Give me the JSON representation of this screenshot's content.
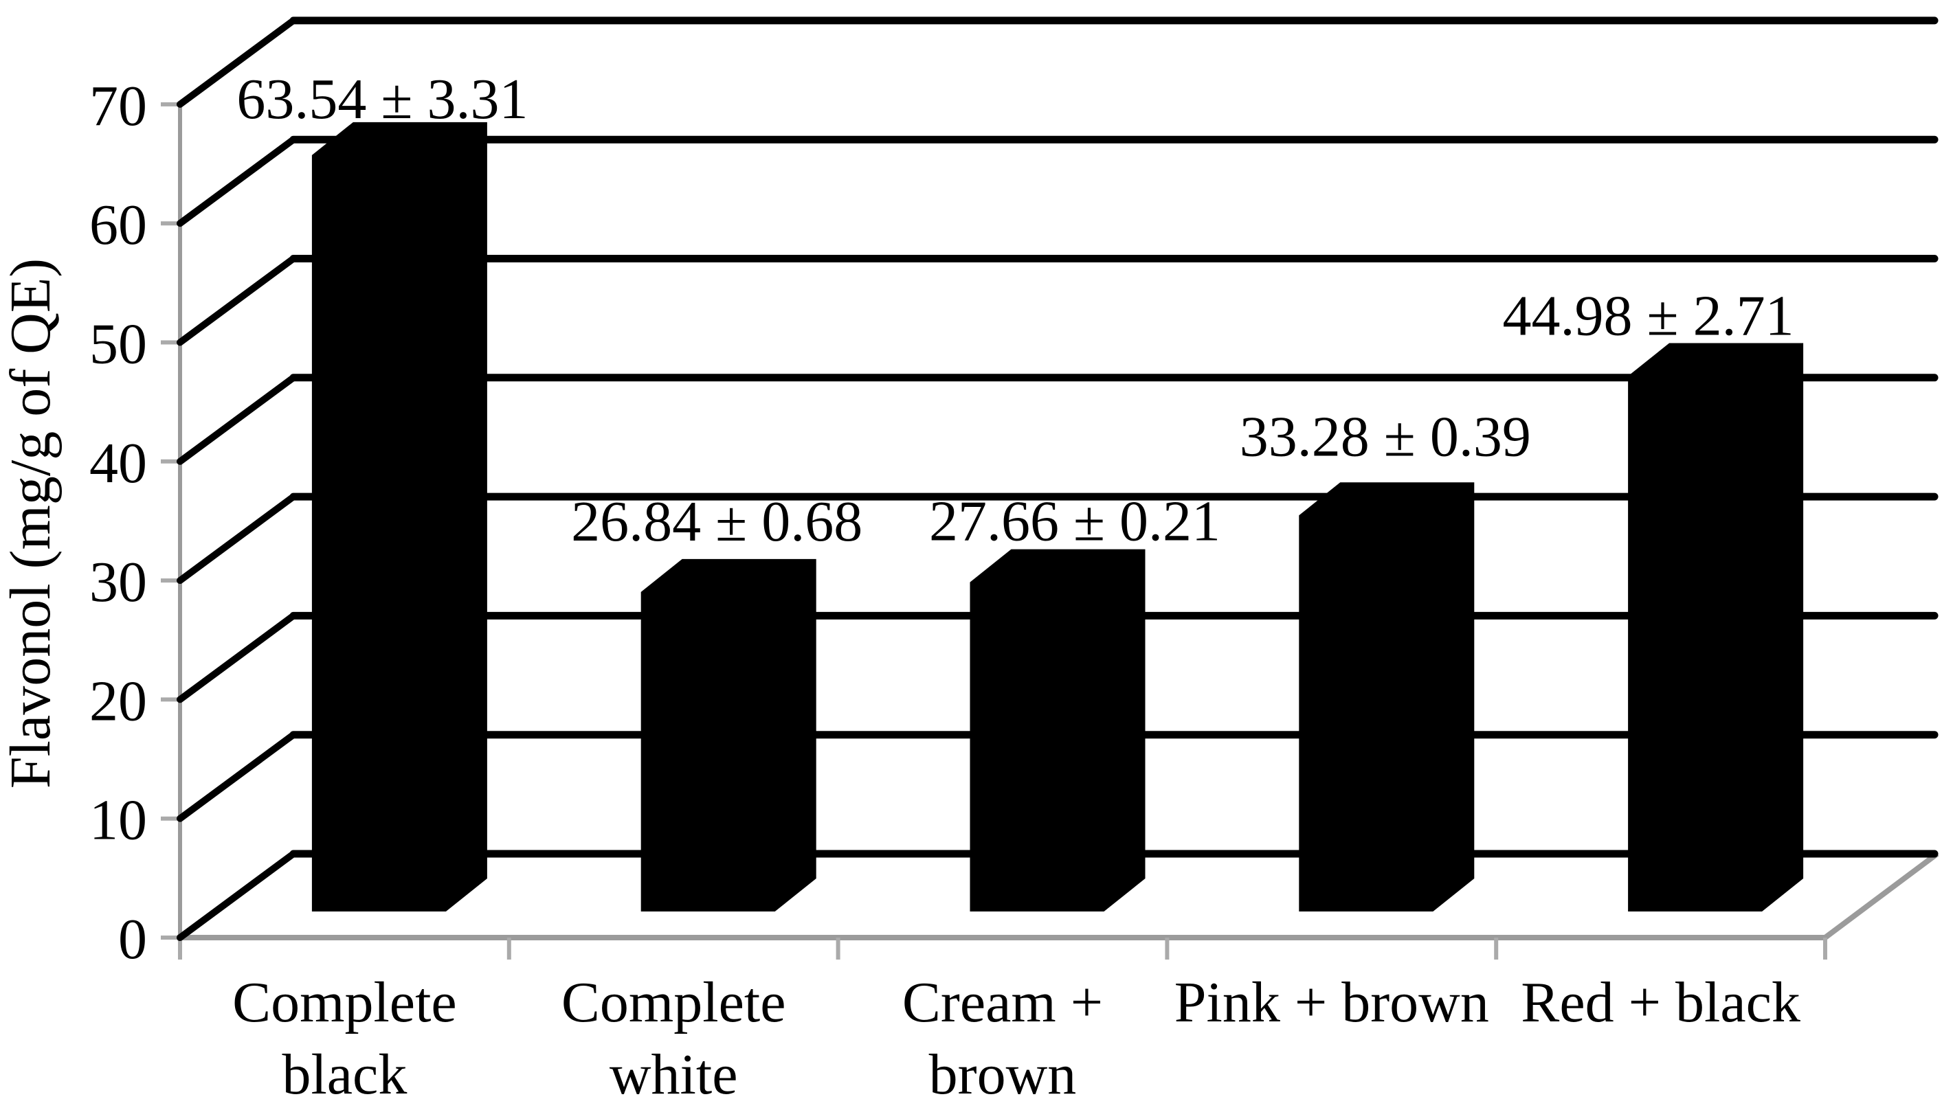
{
  "figure": {
    "background": "#ffffff",
    "description": "3D oblique black column chart"
  },
  "chart_data": {
    "type": "bar",
    "projection": "3d-oblique",
    "title": "",
    "xlabel": "",
    "ylabel": "Flavonol (mg/g of QE)",
    "categories": [
      "Complete black",
      "Complete white",
      "Cream + brown",
      "Pink + brown",
      "Red + black"
    ],
    "category_label_lines": [
      [
        "Complete",
        "black"
      ],
      [
        "Complete",
        "white"
      ],
      [
        "Cream +",
        "brown"
      ],
      [
        "Pink + brown"
      ],
      [
        "Red + black"
      ]
    ],
    "series": [
      {
        "name": "Flavonol",
        "values": [
          63.54,
          26.84,
          27.66,
          33.28,
          44.98
        ],
        "errors": [
          3.31,
          0.68,
          0.21,
          0.39,
          2.71
        ]
      }
    ],
    "data_labels": [
      "63.54 ± 3.31",
      "26.84 ± 0.68",
      "27.66 ± 0.21",
      "33.28 ± 0.39",
      "44.98 ± 2.71"
    ],
    "y_ticks": [
      0,
      10,
      20,
      30,
      40,
      50,
      60,
      70
    ],
    "ylim": [
      0,
      70
    ],
    "grid": "horizontal",
    "legend": "none",
    "colors": {
      "bar": "#000000",
      "gridline": "#000000",
      "axis_line": "#9b9b9b",
      "tick_mark": "#aaaaaa",
      "text": "#000000",
      "background": "#ffffff"
    }
  }
}
